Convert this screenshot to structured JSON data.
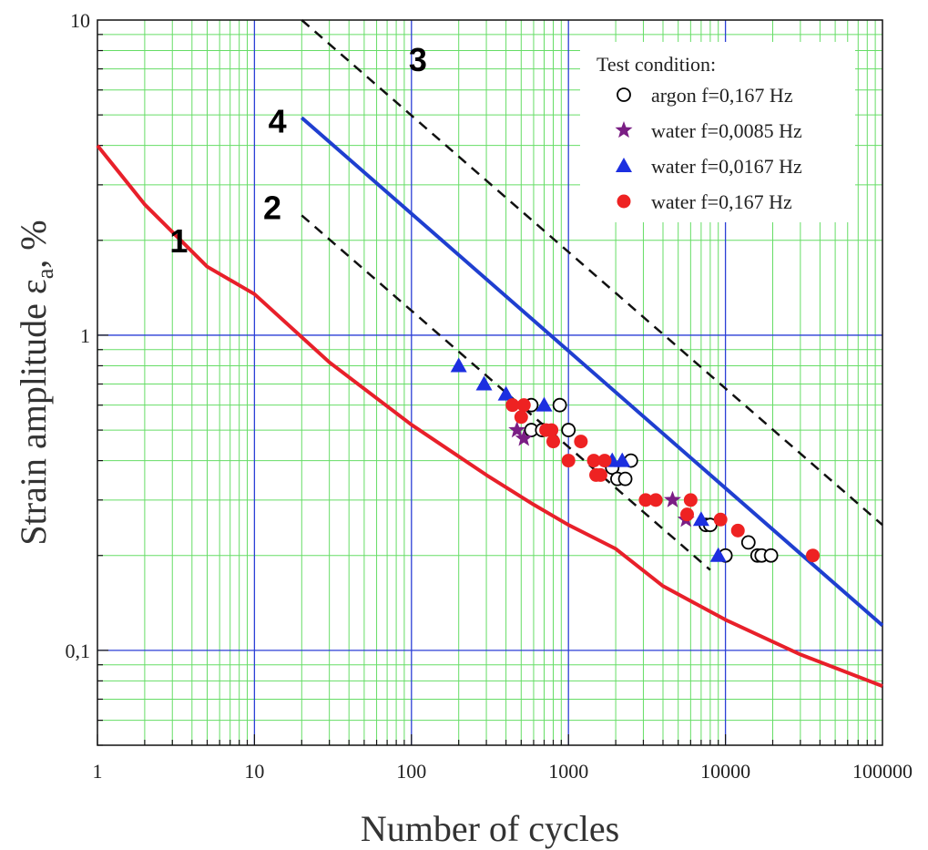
{
  "chart_data": {
    "type": "scatter",
    "xlabel": "Number of cycles",
    "ylabel_main": "Strain amplitude ε",
    "ylabel_sub": "a",
    "ylabel_unit": ", %",
    "x_scale": "log",
    "y_scale": "log",
    "xlim": [
      1,
      100000
    ],
    "ylim": [
      0.05,
      10
    ],
    "grid": true,
    "legend_position": "top-right",
    "legend_title": "Test condition:",
    "x_ticks": [
      {
        "value": 1,
        "label": "1"
      },
      {
        "value": 10,
        "label": "10"
      },
      {
        "value": 100,
        "label": "100"
      },
      {
        "value": 1000,
        "label": "1000"
      },
      {
        "value": 10000,
        "label": "10000"
      },
      {
        "value": 100000,
        "label": "100000"
      }
    ],
    "y_ticks": [
      {
        "value": 0.1,
        "label": "0,1"
      },
      {
        "value": 1,
        "label": "1"
      },
      {
        "value": 10,
        "label": "10"
      }
    ],
    "lines": [
      {
        "label": "1",
        "color": "#e8202a",
        "style": "solid",
        "points": [
          [
            1,
            4.0
          ],
          [
            2,
            2.6
          ],
          [
            5,
            1.65
          ],
          [
            10,
            1.35
          ],
          [
            30,
            0.82
          ],
          [
            100,
            0.52
          ],
          [
            300,
            0.36
          ],
          [
            600,
            0.29
          ],
          [
            1000,
            0.25
          ],
          [
            2000,
            0.21
          ],
          [
            4000,
            0.16
          ],
          [
            10000,
            0.125
          ],
          [
            30000,
            0.097
          ],
          [
            100000,
            0.077
          ]
        ],
        "label_at": [
          3.3,
          2.0
        ]
      },
      {
        "label": "2",
        "color": "#111111",
        "style": "dashed",
        "points": [
          [
            20,
            2.4
          ],
          [
            8000,
            0.18
          ]
        ],
        "label_at": [
          13,
          2.55
        ]
      },
      {
        "label": "3",
        "color": "#111111",
        "style": "dashed",
        "points": [
          [
            20,
            10.0
          ],
          [
            100000,
            0.25
          ]
        ],
        "label_at": [
          110,
          7.5
        ]
      },
      {
        "label": "4",
        "color": "#1f3fd0",
        "style": "solid",
        "points": [
          [
            20,
            4.9
          ],
          [
            100000,
            0.12
          ]
        ],
        "label_at": [
          14,
          4.8
        ]
      }
    ],
    "series": [
      {
        "name": "argon f=0,167 Hz",
        "marker": "open-circle",
        "color": "#000000",
        "points": [
          [
            580,
            0.6
          ],
          [
            880,
            0.6
          ],
          [
            580,
            0.5
          ],
          [
            1000,
            0.5
          ],
          [
            680,
            0.5
          ],
          [
            1900,
            0.38
          ],
          [
            2050,
            0.35
          ],
          [
            2300,
            0.35
          ],
          [
            2500,
            0.4
          ],
          [
            7500,
            0.25
          ],
          [
            8000,
            0.25
          ],
          [
            10000,
            0.2
          ],
          [
            14000,
            0.22
          ],
          [
            16000,
            0.2
          ],
          [
            17000,
            0.2
          ],
          [
            19500,
            0.2
          ]
        ]
      },
      {
        "name": "water f=0,0085 Hz",
        "marker": "star",
        "color": "#7a1e84",
        "points": [
          [
            470,
            0.5
          ],
          [
            520,
            0.47
          ],
          [
            4600,
            0.3
          ],
          [
            5600,
            0.26
          ]
        ]
      },
      {
        "name": "water f=0,0167 Hz",
        "marker": "triangle",
        "color": "#1c2fe0",
        "points": [
          [
            200,
            0.8
          ],
          [
            290,
            0.7
          ],
          [
            400,
            0.65
          ],
          [
            700,
            0.6
          ],
          [
            1900,
            0.4
          ],
          [
            2200,
            0.4
          ],
          [
            7000,
            0.26
          ],
          [
            9000,
            0.2
          ]
        ]
      },
      {
        "name": "water f=0,167 Hz",
        "marker": "filled-circle",
        "color": "#ee2222",
        "points": [
          [
            440,
            0.6
          ],
          [
            520,
            0.6
          ],
          [
            500,
            0.55
          ],
          [
            720,
            0.5
          ],
          [
            780,
            0.5
          ],
          [
            800,
            0.46
          ],
          [
            1000,
            0.4
          ],
          [
            1200,
            0.46
          ],
          [
            1450,
            0.4
          ],
          [
            1500,
            0.36
          ],
          [
            1600,
            0.36
          ],
          [
            1700,
            0.4
          ],
          [
            3100,
            0.3
          ],
          [
            3600,
            0.3
          ],
          [
            5700,
            0.27
          ],
          [
            6000,
            0.3
          ],
          [
            9300,
            0.26
          ],
          [
            12000,
            0.24
          ],
          [
            36000,
            0.2
          ]
        ]
      }
    ]
  }
}
